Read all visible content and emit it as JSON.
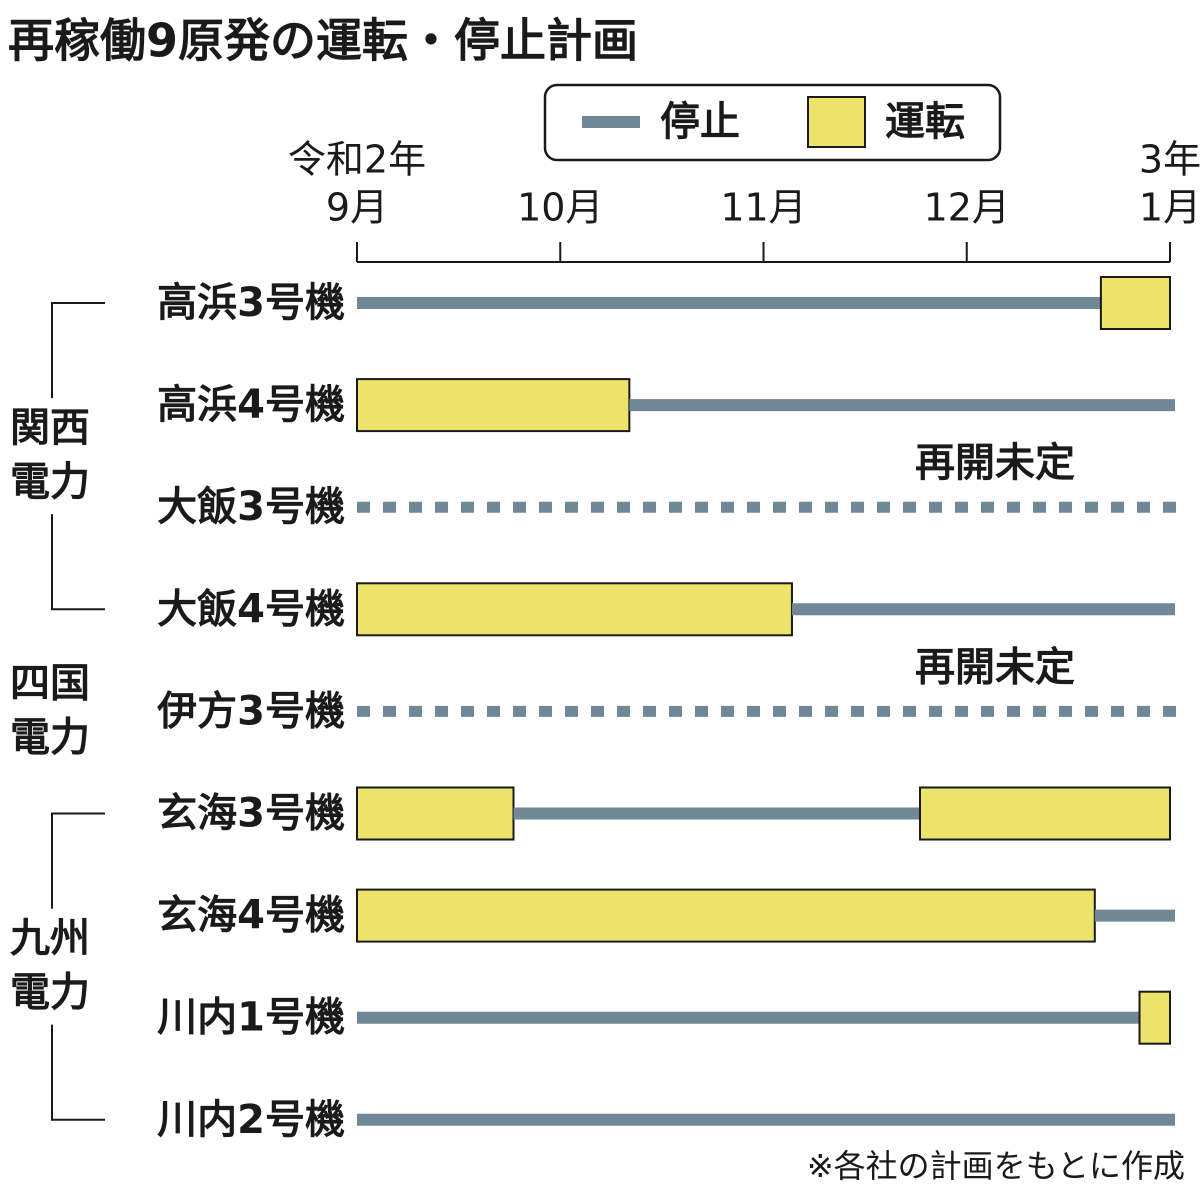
{
  "chart_data": {
    "type": "gantt",
    "title": "再稼働9原発の運転・停止計画",
    "series": [
      {
        "name": "停止",
        "color": "#6f8796"
      },
      {
        "name": "運転",
        "color": "#eee46c"
      }
    ],
    "xlim": [
      0,
      4
    ],
    "xticks": [
      {
        "value": 0,
        "label": "9月"
      },
      {
        "value": 1,
        "label": "10月"
      },
      {
        "value": 2,
        "label": "11月"
      },
      {
        "value": 3,
        "label": "12月"
      },
      {
        "value": 4,
        "label": "1月"
      }
    ],
    "x_year_labels": [
      {
        "value": 0,
        "label": "令和2年"
      },
      {
        "value": 4,
        "label": "3年"
      }
    ],
    "groups": [
      {
        "label_lines": [
          "関西",
          "電力"
        ],
        "rows": [
          {
            "label": "高浜3号機",
            "segments": [
              {
                "series": 0,
                "start": 0,
                "end": 3.66
              },
              {
                "series": 1,
                "start": 3.66,
                "end": 4
              }
            ]
          },
          {
            "label": "高浜4号機",
            "segments": [
              {
                "series": 1,
                "start": 0,
                "end": 1.34
              },
              {
                "series": 0,
                "start": 1.34,
                "end": 4
              }
            ]
          },
          {
            "label": "大飯3号機",
            "note": "再開未定",
            "segments": []
          },
          {
            "label": "大飯4号機",
            "segments": [
              {
                "series": 1,
                "start": 0,
                "end": 2.14
              },
              {
                "series": 0,
                "start": 2.14,
                "end": 4
              }
            ]
          }
        ]
      },
      {
        "label_lines": [
          "四国",
          "電力"
        ],
        "rows": [
          {
            "label": "伊方3号機",
            "note": "再開未定",
            "segments": []
          }
        ]
      },
      {
        "label_lines": [
          "九州",
          "電力"
        ],
        "rows": [
          {
            "label": "玄海3号機",
            "segments": [
              {
                "series": 1,
                "start": 0,
                "end": 0.77
              },
              {
                "series": 0,
                "start": 0.77,
                "end": 2.77
              },
              {
                "series": 1,
                "start": 2.77,
                "end": 4
              }
            ]
          },
          {
            "label": "玄海4号機",
            "segments": [
              {
                "series": 1,
                "start": 0,
                "end": 3.63
              },
              {
                "series": 0,
                "start": 3.63,
                "end": 4
              }
            ]
          },
          {
            "label": "川内1号機",
            "segments": [
              {
                "series": 0,
                "start": 0,
                "end": 3.85
              },
              {
                "series": 1,
                "start": 3.85,
                "end": 4
              }
            ]
          },
          {
            "label": "川内2号機",
            "segments": [
              {
                "series": 0,
                "start": 0,
                "end": 4
              }
            ]
          }
        ]
      }
    ],
    "footnote": "※各社の計画をもとに作成"
  }
}
